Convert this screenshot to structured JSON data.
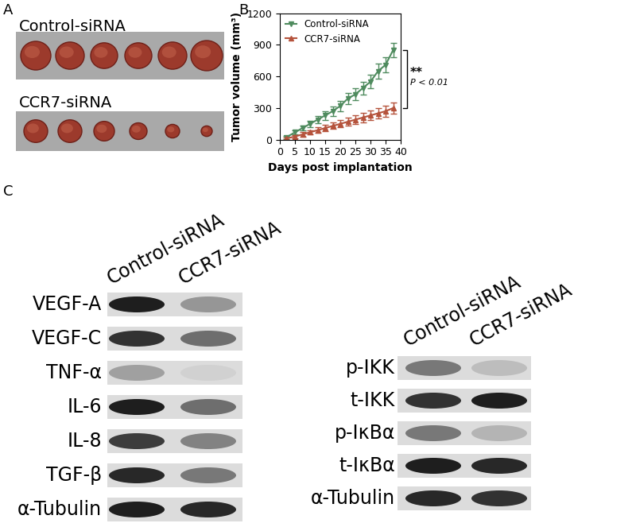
{
  "panel_labels": [
    "A",
    "B",
    "C"
  ],
  "photo": {
    "groups": [
      "Control-siRNA",
      "CCR7-siRNA"
    ]
  },
  "chart_data": {
    "type": "line",
    "xlabel": "Days post implantation",
    "ylabel": "Tumor volume (mm³)",
    "x": [
      2,
      5,
      7.5,
      10,
      12.5,
      15,
      17.5,
      20,
      22.5,
      25,
      27.5,
      30,
      32.5,
      35,
      37.5
    ],
    "xlim": [
      0,
      40
    ],
    "xticks": [
      0,
      5,
      10,
      15,
      20,
      25,
      30,
      35,
      40
    ],
    "ylim": [
      0,
      1200
    ],
    "yticks": [
      0,
      300,
      600,
      900,
      1200
    ],
    "legend": "upper left",
    "series": [
      {
        "name": "Control-siRNA",
        "color": "#4f8b5e",
        "marker": "triangle_down",
        "values": [
          20,
          70,
          110,
          150,
          190,
          230,
          270,
          320,
          390,
          430,
          490,
          550,
          650,
          710,
          850
        ],
        "errors": [
          15,
          20,
          25,
          30,
          35,
          40,
          45,
          50,
          55,
          55,
          60,
          65,
          70,
          75,
          70
        ]
      },
      {
        "name": "CCR7-siRNA",
        "color": "#b5533c",
        "marker": "triangle_up",
        "values": [
          10,
          30,
          50,
          70,
          90,
          110,
          130,
          150,
          170,
          190,
          210,
          230,
          250,
          270,
          300
        ],
        "errors": [
          10,
          15,
          20,
          20,
          25,
          30,
          30,
          35,
          40,
          40,
          45,
          45,
          50,
          50,
          55
        ]
      }
    ],
    "annotations": [
      "**",
      "P < 0.01"
    ]
  },
  "blots": {
    "lanes": [
      "Control-siRNA",
      "CCR7-siRNA"
    ],
    "left": [
      {
        "label": "VEGF-A",
        "intensity": [
          0.95,
          0.35
        ]
      },
      {
        "label": "VEGF-C",
        "intensity": [
          0.85,
          0.55
        ]
      },
      {
        "label": "TNF-α",
        "intensity": [
          0.3,
          0.05
        ]
      },
      {
        "label": "IL-6",
        "intensity": [
          0.95,
          0.55
        ]
      },
      {
        "label": "IL-8",
        "intensity": [
          0.8,
          0.45
        ]
      },
      {
        "label": "TGF-β",
        "intensity": [
          0.9,
          0.5
        ]
      },
      {
        "label": "α-Tubulin",
        "intensity": [
          0.95,
          0.9
        ]
      }
    ],
    "right": [
      {
        "label": "p-IKK",
        "intensity": [
          0.5,
          0.15
        ]
      },
      {
        "label": "t-IKK",
        "intensity": [
          0.85,
          0.95
        ]
      },
      {
        "label": "p-IκBα",
        "intensity": [
          0.5,
          0.2
        ]
      },
      {
        "label": "t-IκBα",
        "intensity": [
          0.95,
          0.9
        ]
      },
      {
        "label": "α-Tubulin",
        "intensity": [
          0.9,
          0.85
        ]
      }
    ]
  }
}
